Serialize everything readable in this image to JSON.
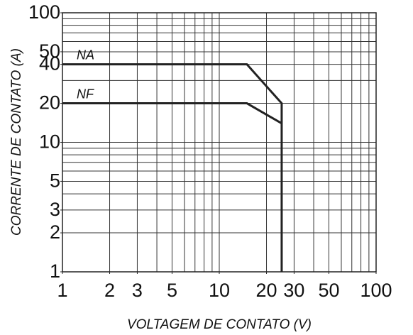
{
  "chart_data": {
    "type": "line",
    "xlabel": "VOLTAGEM  DE CONTATO (V)",
    "ylabel": "CORRENTE DE CONTATO (A)",
    "xscale": "log",
    "yscale": "log",
    "xlim": [
      1,
      100
    ],
    "ylim": [
      1,
      100
    ],
    "xticks": [
      1,
      2,
      3,
      5,
      10,
      20,
      30,
      50,
      100
    ],
    "yticks": [
      1,
      2,
      3,
      5,
      10,
      20,
      40,
      50,
      100
    ],
    "x_grid": [
      1,
      2,
      3,
      4,
      5,
      6,
      7,
      8,
      9,
      10,
      20,
      30,
      40,
      50,
      60,
      70,
      80,
      90,
      100
    ],
    "y_grid": [
      1,
      2,
      3,
      4,
      5,
      6,
      7,
      8,
      9,
      10,
      20,
      30,
      40,
      50,
      60,
      70,
      80,
      90,
      100
    ],
    "grid": true,
    "series": [
      {
        "name": "NA",
        "color": "#222222",
        "x": [
          1,
          15,
          25,
          25
        ],
        "values": [
          40,
          40,
          20,
          1
        ]
      },
      {
        "name": "NF",
        "color": "#222222",
        "x": [
          1,
          15,
          25
        ],
        "values": [
          20,
          20,
          14
        ]
      }
    ]
  }
}
